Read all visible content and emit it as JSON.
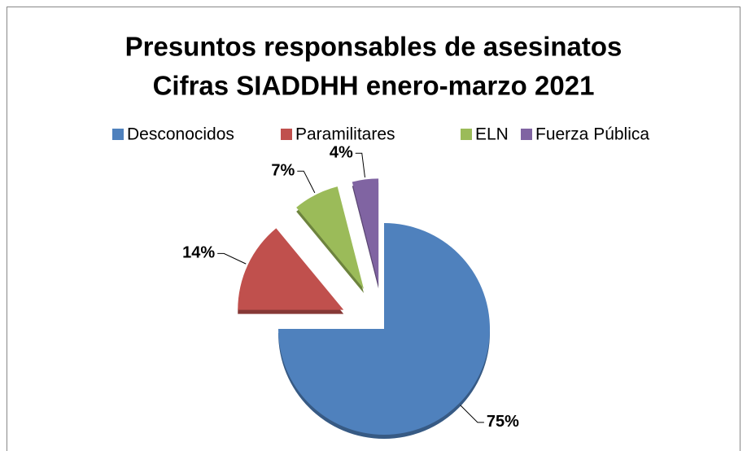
{
  "chart_data": {
    "type": "pie",
    "title": [
      "Presuntos responsables de asesinatos",
      "Cifras SIADDHH enero-marzo 2021"
    ],
    "categories": [
      "Desconocidos",
      "Paramilitares",
      "ELN",
      "Fuerza Pública"
    ],
    "values": [
      75,
      14,
      7,
      4
    ],
    "value_labels": [
      "75%",
      "14%",
      "7%",
      "4%"
    ],
    "colors": [
      "#4f81bd",
      "#c0504d",
      "#9bbb59",
      "#8064a2"
    ],
    "legend": "top"
  }
}
